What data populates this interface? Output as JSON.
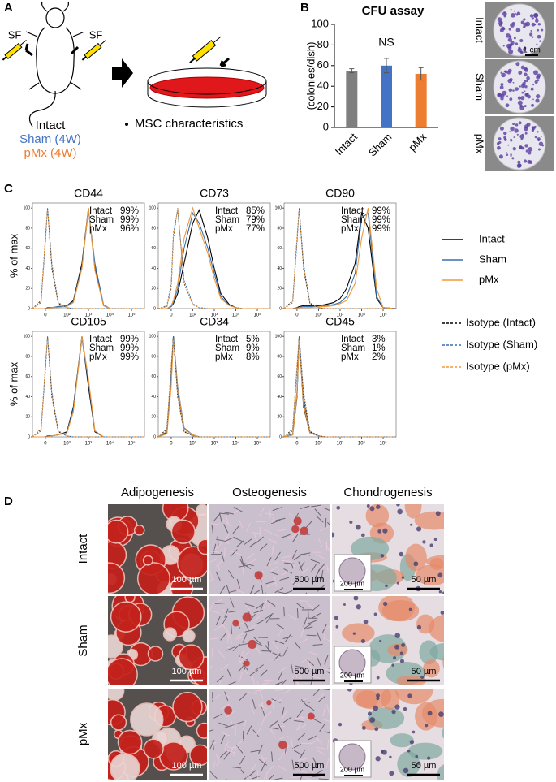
{
  "figure": {
    "panel_labels": [
      "A",
      "B",
      "C",
      "D"
    ],
    "a": {
      "sf_left": "SF",
      "sf_right": "SF",
      "groups": [
        "Intact",
        "Sham (4W)",
        "pMx (4W)"
      ],
      "group_colors": [
        "#000000",
        "#4472c4",
        "#ed7d31"
      ],
      "bullet": "MSC characteristics"
    },
    "b_photos": {
      "rows": [
        "Intact",
        "Sham",
        "pMx"
      ],
      "scale_bar": "1 cm"
    },
    "d": {
      "columns": [
        "Adipogenesis",
        "Osteogenesis",
        "Chondrogenesis"
      ],
      "rows": [
        "Intact",
        "Sham",
        "pMx"
      ],
      "scale_bars": [
        "100 µm",
        "500 µm",
        "50 µm"
      ],
      "inset_scale_bar": "200 µm"
    }
  },
  "chart_data": [
    {
      "type": "bar",
      "title": "CFU assay",
      "y_label": "(colonies/dish)",
      "annotation": "NS",
      "categories": [
        "Intact",
        "Sham",
        "pMx"
      ],
      "values": [
        55,
        60,
        52
      ],
      "errors": [
        2,
        7,
        6
      ],
      "colors": [
        "#7f7f7f",
        "#4472c4",
        "#ed7d31"
      ],
      "ylim": [
        0,
        100
      ],
      "yticks": [
        0,
        20,
        40,
        60,
        80,
        100
      ]
    },
    {
      "type": "flow-histogram",
      "y_label": "% of max",
      "xscale": "biexponential",
      "x": [
        -60,
        -20,
        0,
        10,
        30,
        60,
        100,
        200,
        500,
        1000,
        2000,
        5000,
        10000,
        20000,
        50000,
        100000,
        400000
      ],
      "xlim": [
        -60,
        400000
      ],
      "xticks": [
        {
          "value": 0,
          "label": "0"
        },
        {
          "value": 100,
          "label": "10²"
        },
        {
          "value": 1000,
          "label": "10³"
        },
        {
          "value": 10000,
          "label": "10⁴"
        },
        {
          "value": 100000,
          "label": "10⁵"
        }
      ],
      "ylim": [
        0,
        105
      ],
      "yticks": [
        0,
        20,
        40,
        60,
        80,
        100
      ],
      "panels": [
        {
          "title": "CD44",
          "values": [
            99,
            99,
            96
          ],
          "value_labels": [
            "99%",
            "99%",
            "96%"
          ]
        },
        {
          "title": "CD73",
          "values": [
            85,
            79,
            77
          ],
          "value_labels": [
            "85%",
            "79%",
            "77%"
          ]
        },
        {
          "title": "CD90",
          "values": [
            99,
            99,
            99
          ],
          "value_labels": [
            "99%",
            "99%",
            "99%"
          ]
        },
        {
          "title": "CD105",
          "values": [
            99,
            99,
            99
          ],
          "value_labels": [
            "99%",
            "99%",
            "99%"
          ]
        },
        {
          "title": "CD34",
          "values": [
            5,
            9,
            8
          ],
          "value_labels": [
            "5%",
            "9%",
            "8%"
          ]
        },
        {
          "title": "CD45",
          "values": [
            3,
            1,
            2
          ],
          "value_labels": [
            "3%",
            "1%",
            "2%"
          ]
        }
      ],
      "series": [
        {
          "name": "Intact",
          "color": "#000000",
          "dash": false,
          "values": [
            [
              0,
              0,
              0,
              1,
              1,
              2,
              3,
              8,
              45,
              100,
              40,
              3,
              0,
              0,
              0,
              0,
              0
            ],
            [
              0,
              0,
              2,
              5,
              15,
              45,
              85,
              98,
              70,
              40,
              15,
              4,
              1,
              0,
              0,
              0,
              0
            ],
            [
              0,
              0,
              1,
              2,
              3,
              3,
              3,
              4,
              6,
              10,
              20,
              45,
              95,
              80,
              10,
              1,
              0
            ],
            [
              0,
              0,
              0,
              1,
              1,
              2,
              5,
              30,
              100,
              50,
              5,
              0,
              0,
              0,
              0,
              0,
              0
            ],
            [
              0,
              4,
              55,
              100,
              45,
              8,
              2,
              0,
              0,
              0,
              0,
              0,
              0,
              0,
              0,
              0,
              0
            ],
            [
              0,
              2,
              40,
              100,
              30,
              4,
              1,
              0,
              0,
              0,
              0,
              0,
              0,
              0,
              0,
              0,
              0
            ]
          ]
        },
        {
          "name": "Sham",
          "color": "#3a6fae",
          "dash": false,
          "values": [
            [
              0,
              0,
              0,
              1,
              1,
              2,
              3,
              7,
              42,
              98,
              45,
              4,
              0,
              0,
              0,
              0,
              0
            ],
            [
              0,
              0,
              2,
              6,
              20,
              60,
              95,
              85,
              60,
              35,
              12,
              3,
              1,
              0,
              0,
              0,
              0
            ],
            [
              0,
              0,
              1,
              1,
              2,
              2,
              2,
              3,
              4,
              6,
              12,
              35,
              90,
              95,
              12,
              1,
              0
            ],
            [
              0,
              0,
              0,
              1,
              1,
              2,
              4,
              28,
              98,
              55,
              6,
              0,
              0,
              0,
              0,
              0,
              0
            ],
            [
              0,
              5,
              60,
              100,
              50,
              9,
              2,
              0,
              0,
              0,
              0,
              0,
              0,
              0,
              0,
              0,
              0
            ],
            [
              0,
              3,
              45,
              98,
              35,
              5,
              1,
              0,
              0,
              0,
              0,
              0,
              0,
              0,
              0,
              0,
              0
            ]
          ]
        },
        {
          "name": "pMx",
          "color": "#ef9a3a",
          "dash": false,
          "values": [
            [
              0,
              0,
              0,
              0,
              1,
              1,
              2,
              6,
              40,
              100,
              38,
              3,
              0,
              0,
              0,
              0,
              0
            ],
            [
              0,
              0,
              3,
              8,
              25,
              70,
              100,
              80,
              55,
              30,
              10,
              3,
              1,
              0,
              0,
              0,
              0
            ],
            [
              0,
              0,
              0,
              1,
              1,
              1,
              2,
              2,
              3,
              5,
              8,
              25,
              70,
              100,
              20,
              1,
              0
            ],
            [
              0,
              0,
              0,
              0,
              1,
              2,
              4,
              25,
              100,
              58,
              6,
              0,
              0,
              0,
              0,
              0,
              0
            ],
            [
              0,
              3,
              50,
              98,
              48,
              8,
              2,
              0,
              0,
              0,
              0,
              0,
              0,
              0,
              0,
              0,
              0
            ],
            [
              0,
              2,
              42,
              100,
              32,
              4,
              1,
              0,
              0,
              0,
              0,
              0,
              0,
              0,
              0,
              0,
              0
            ]
          ]
        },
        {
          "name": "Isotype (Intact)",
          "color": "#000000",
          "dash": true,
          "values": [
            [
              0,
              8,
              70,
              100,
              40,
              5,
              1,
              0,
              0,
              0,
              0,
              0,
              0,
              0,
              0,
              0,
              0
            ],
            [
              0,
              2,
              20,
              70,
              100,
              25,
              4,
              1,
              0,
              0,
              0,
              0,
              0,
              0,
              0,
              0,
              0
            ],
            [
              0,
              8,
              70,
              100,
              40,
              5,
              1,
              0,
              0,
              0,
              0,
              0,
              0,
              0,
              0,
              0,
              0
            ],
            [
              0,
              8,
              70,
              100,
              40,
              5,
              1,
              0,
              0,
              0,
              0,
              0,
              0,
              0,
              0,
              0,
              0
            ],
            [
              0,
              8,
              70,
              100,
              40,
              5,
              1,
              0,
              0,
              0,
              0,
              0,
              0,
              0,
              0,
              0,
              0
            ],
            [
              0,
              8,
              70,
              100,
              40,
              5,
              1,
              0,
              0,
              0,
              0,
              0,
              0,
              0,
              0,
              0,
              0
            ]
          ]
        },
        {
          "name": "Isotype (Sham)",
          "color": "#3a6fae",
          "dash": true,
          "values": [
            [
              0,
              6,
              65,
              100,
              45,
              6,
              1,
              0,
              0,
              0,
              0,
              0,
              0,
              0,
              0,
              0,
              0
            ],
            [
              0,
              3,
              25,
              75,
              98,
              28,
              5,
              1,
              0,
              0,
              0,
              0,
              0,
              0,
              0,
              0,
              0
            ],
            [
              0,
              6,
              65,
              100,
              45,
              6,
              1,
              0,
              0,
              0,
              0,
              0,
              0,
              0,
              0,
              0,
              0
            ],
            [
              0,
              6,
              65,
              100,
              45,
              6,
              1,
              0,
              0,
              0,
              0,
              0,
              0,
              0,
              0,
              0,
              0
            ],
            [
              0,
              6,
              65,
              100,
              45,
              6,
              1,
              0,
              0,
              0,
              0,
              0,
              0,
              0,
              0,
              0,
              0
            ],
            [
              0,
              6,
              65,
              100,
              45,
              6,
              1,
              0,
              0,
              0,
              0,
              0,
              0,
              0,
              0,
              0,
              0
            ]
          ]
        },
        {
          "name": "Isotype (pMx)",
          "color": "#ef9a3a",
          "dash": true,
          "values": [
            [
              0,
              7,
              72,
              98,
              42,
              5,
              1,
              0,
              0,
              0,
              0,
              0,
              0,
              0,
              0,
              0,
              0
            ],
            [
              0,
              2,
              22,
              72,
              100,
              26,
              4,
              1,
              0,
              0,
              0,
              0,
              0,
              0,
              0,
              0,
              0
            ],
            [
              0,
              7,
              72,
              98,
              42,
              5,
              1,
              0,
              0,
              0,
              0,
              0,
              0,
              0,
              0,
              0,
              0
            ],
            [
              0,
              7,
              72,
              98,
              42,
              5,
              1,
              0,
              0,
              0,
              0,
              0,
              0,
              0,
              0,
              0,
              0
            ],
            [
              0,
              7,
              72,
              98,
              42,
              5,
              1,
              0,
              0,
              0,
              0,
              0,
              0,
              0,
              0,
              0,
              0
            ],
            [
              0,
              7,
              72,
              98,
              42,
              5,
              1,
              0,
              0,
              0,
              0,
              0,
              0,
              0,
              0,
              0,
              0
            ]
          ]
        }
      ]
    }
  ]
}
